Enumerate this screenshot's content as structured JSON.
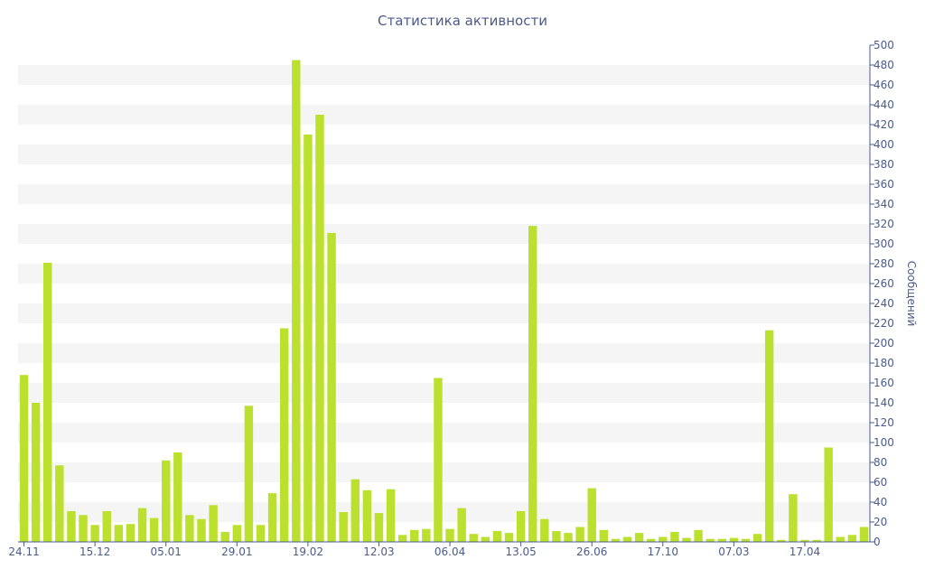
{
  "chart_data": {
    "type": "bar",
    "title": "Статистика активности",
    "xlabel": "",
    "ylabel": "Сообщений",
    "ylim": [
      0,
      500
    ],
    "grid": "alternating horizontal bands",
    "bar_color": "#bbe02e",
    "axis_color": "#4a5b8c",
    "y_ticks": [
      0,
      20,
      40,
      60,
      80,
      100,
      120,
      140,
      160,
      180,
      200,
      220,
      240,
      260,
      280,
      300,
      320,
      340,
      360,
      380,
      400,
      420,
      440,
      460,
      480,
      500
    ],
    "x_tick_labels": [
      {
        "index": 0,
        "label": "24.11"
      },
      {
        "index": 6,
        "label": "15.12"
      },
      {
        "index": 12,
        "label": "05.01"
      },
      {
        "index": 18,
        "label": "29.01"
      },
      {
        "index": 24,
        "label": "19.02"
      },
      {
        "index": 30,
        "label": "12.03"
      },
      {
        "index": 36,
        "label": "06.04"
      },
      {
        "index": 42,
        "label": "13.05"
      },
      {
        "index": 48,
        "label": "26.06"
      },
      {
        "index": 54,
        "label": "17.10"
      },
      {
        "index": 60,
        "label": "07.03"
      },
      {
        "index": 66,
        "label": "17.04"
      }
    ],
    "values": [
      168,
      140,
      281,
      77,
      31,
      27,
      17,
      31,
      17,
      18,
      34,
      24,
      82,
      90,
      27,
      23,
      37,
      10,
      17,
      137,
      17,
      49,
      215,
      485,
      410,
      430,
      311,
      30,
      63,
      52,
      29,
      53,
      7,
      12,
      13,
      165,
      13,
      34,
      8,
      5,
      11,
      9,
      31,
      318,
      23,
      11,
      9,
      15,
      54,
      12,
      3,
      5,
      9,
      3,
      5,
      10,
      4,
      12,
      3,
      3,
      4,
      3,
      8,
      213,
      2,
      48,
      2,
      2,
      95,
      5,
      7,
      15
    ]
  }
}
